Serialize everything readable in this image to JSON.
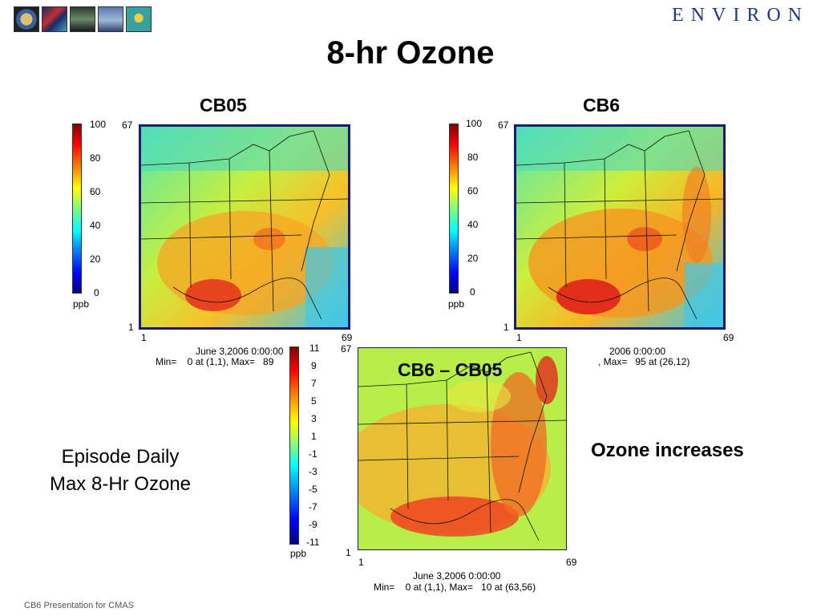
{
  "header": {
    "logo_text": "ENVIRON",
    "thumbs": [
      "globe-thumb",
      "dna-thumb",
      "building-thumb",
      "landscape-thumb",
      "balloon-thumb"
    ]
  },
  "title": "8-hr Ozone",
  "panels": {
    "cb05": {
      "heading": "CB05",
      "cbar_ticks": [
        "100",
        "80",
        "60",
        "40",
        "20",
        "0"
      ],
      "cbar_unit": "ppb",
      "y_top": "67",
      "y_bottom": "1",
      "x_left": "1",
      "x_right": "69",
      "caption_line1": "June 3,2006 0:00:00",
      "caption_line2": "Min=    0 at (1,1), Max=   89"
    },
    "cb6": {
      "heading": "CB6",
      "cbar_ticks": [
        "100",
        "80",
        "60",
        "40",
        "20",
        "0"
      ],
      "cbar_unit": "ppb",
      "y_top": "67",
      "y_bottom": "1",
      "x_left": "1",
      "x_right": "69",
      "caption_line1": "2006 0:00:00",
      "caption_line2": ", Max=   95 at (26,12)"
    },
    "diff": {
      "heading": "CB6 – CB05",
      "cbar_ticks": [
        "11",
        "9",
        "7",
        "5",
        "3",
        "1",
        "-1",
        "-3",
        "-5",
        "-7",
        "-9",
        "-11"
      ],
      "cbar_unit": "ppb",
      "y_top": "67",
      "y_bottom": "1",
      "x_left": "1",
      "x_right": "69",
      "caption_line1": "June 3,2006 0:00:00",
      "caption_line2": "Min=    0 at (1,1), Max=   10 at (63,56)"
    }
  },
  "side_label": {
    "line1": "Episode Daily",
    "line2": "Max 8-Hr Ozone"
  },
  "note": "Ozone increases",
  "footer": "CB6 Presentation for CMAS",
  "colors": {
    "frame": "#1a1a6e",
    "logo": "#1f3a6e"
  }
}
